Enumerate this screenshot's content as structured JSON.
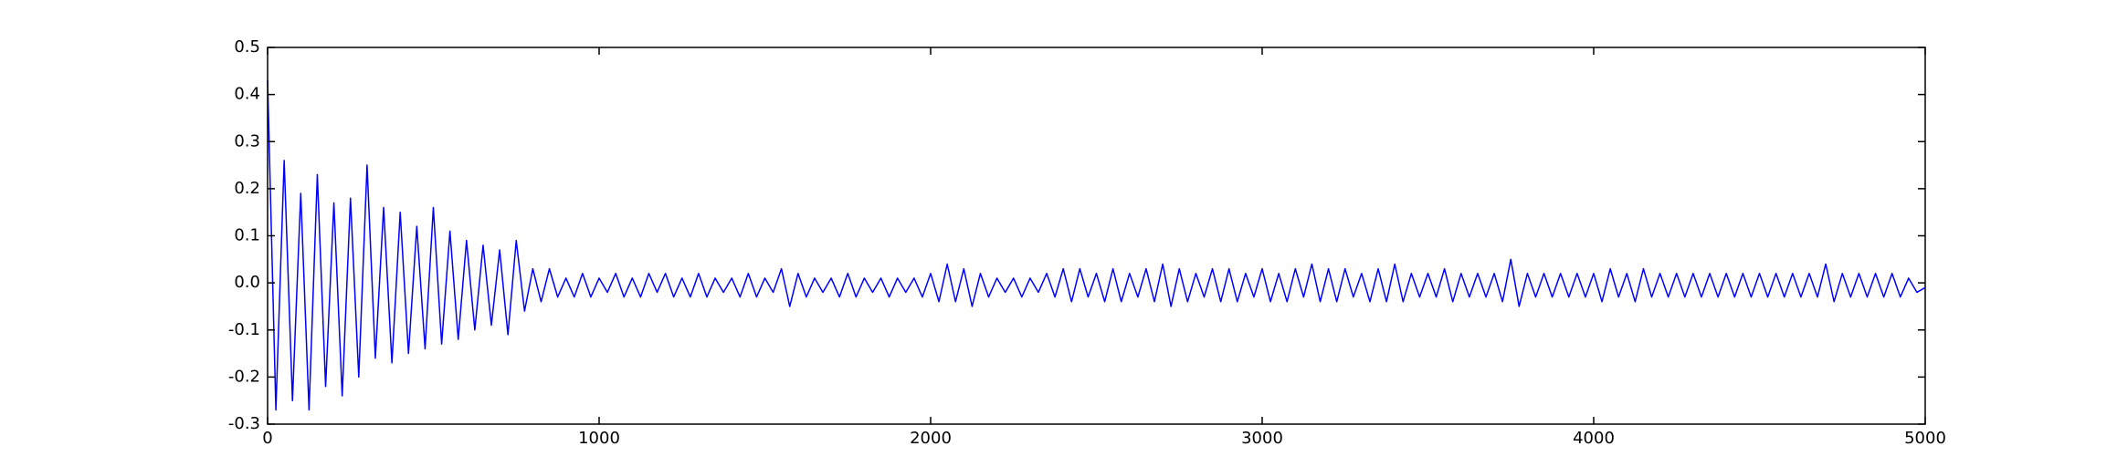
{
  "chart_data": {
    "type": "line",
    "x": [
      0,
      25,
      50,
      75,
      100,
      125,
      150,
      175,
      200,
      225,
      250,
      275,
      300,
      325,
      350,
      375,
      400,
      425,
      450,
      475,
      500,
      525,
      550,
      575,
      600,
      625,
      650,
      675,
      700,
      725,
      750,
      775,
      800,
      825,
      850,
      875,
      900,
      925,
      950,
      975,
      1000,
      1025,
      1050,
      1075,
      1100,
      1125,
      1150,
      1175,
      1200,
      1225,
      1250,
      1275,
      1300,
      1325,
      1350,
      1375,
      1400,
      1425,
      1450,
      1475,
      1500,
      1525,
      1550,
      1575,
      1600,
      1625,
      1650,
      1675,
      1700,
      1725,
      1750,
      1775,
      1800,
      1825,
      1850,
      1875,
      1900,
      1925,
      1950,
      1975,
      2000,
      2025,
      2050,
      2075,
      2100,
      2125,
      2150,
      2175,
      2200,
      2225,
      2250,
      2275,
      2300,
      2325,
      2350,
      2375,
      2400,
      2425,
      2450,
      2475,
      2500,
      2525,
      2550,
      2575,
      2600,
      2625,
      2650,
      2675,
      2700,
      2725,
      2750,
      2775,
      2800,
      2825,
      2850,
      2875,
      2900,
      2925,
      2950,
      2975,
      3000,
      3025,
      3050,
      3075,
      3100,
      3125,
      3150,
      3175,
      3200,
      3225,
      3250,
      3275,
      3300,
      3325,
      3350,
      3375,
      3400,
      3425,
      3450,
      3475,
      3500,
      3525,
      3550,
      3575,
      3600,
      3625,
      3650,
      3675,
      3700,
      3725,
      3750,
      3775,
      3800,
      3825,
      3850,
      3875,
      3900,
      3925,
      3950,
      3975,
      4000,
      4025,
      4050,
      4075,
      4100,
      4125,
      4150,
      4175,
      4200,
      4225,
      4250,
      4275,
      4300,
      4325,
      4350,
      4375,
      4400,
      4425,
      4450,
      4475,
      4500,
      4525,
      4550,
      4575,
      4600,
      4625,
      4650,
      4675,
      4700,
      4725,
      4750,
      4775,
      4800,
      4825,
      4850,
      4875,
      4900,
      4925,
      4950,
      4975,
      5000
    ],
    "series": [
      {
        "color": "#0000ff",
        "values": [
          0.43,
          -0.27,
          0.26,
          -0.25,
          0.19,
          -0.27,
          0.23,
          -0.22,
          0.17,
          -0.24,
          0.18,
          -0.2,
          0.25,
          -0.16,
          0.16,
          -0.17,
          0.15,
          -0.15,
          0.12,
          -0.14,
          0.16,
          -0.13,
          0.11,
          -0.12,
          0.09,
          -0.1,
          0.08,
          -0.09,
          0.07,
          -0.11,
          0.09,
          -0.06,
          0.03,
          -0.04,
          0.03,
          -0.03,
          0.01,
          -0.03,
          0.02,
          -0.03,
          0.01,
          -0.02,
          0.02,
          -0.03,
          0.01,
          -0.03,
          0.02,
          -0.02,
          0.02,
          -0.03,
          0.01,
          -0.03,
          0.02,
          -0.03,
          0.01,
          -0.02,
          0.01,
          -0.03,
          0.02,
          -0.03,
          0.01,
          -0.02,
          0.03,
          -0.05,
          0.02,
          -0.03,
          0.01,
          -0.02,
          0.01,
          -0.03,
          0.02,
          -0.03,
          0.01,
          -0.02,
          0.01,
          -0.03,
          0.01,
          -0.02,
          0.01,
          -0.03,
          0.02,
          -0.04,
          0.04,
          -0.04,
          0.03,
          -0.05,
          0.02,
          -0.03,
          0.01,
          -0.02,
          0.01,
          -0.03,
          0.01,
          -0.02,
          0.02,
          -0.03,
          0.03,
          -0.04,
          0.03,
          -0.03,
          0.02,
          -0.04,
          0.03,
          -0.04,
          0.02,
          -0.03,
          0.03,
          -0.04,
          0.04,
          -0.05,
          0.03,
          -0.04,
          0.02,
          -0.03,
          0.03,
          -0.04,
          0.03,
          -0.04,
          0.02,
          -0.03,
          0.03,
          -0.04,
          0.02,
          -0.04,
          0.03,
          -0.03,
          0.04,
          -0.04,
          0.03,
          -0.04,
          0.03,
          -0.03,
          0.02,
          -0.04,
          0.03,
          -0.04,
          0.04,
          -0.04,
          0.02,
          -0.03,
          0.02,
          -0.03,
          0.03,
          -0.04,
          0.02,
          -0.03,
          0.02,
          -0.03,
          0.02,
          -0.04,
          0.05,
          -0.05,
          0.02,
          -0.03,
          0.02,
          -0.03,
          0.02,
          -0.03,
          0.02,
          -0.03,
          0.02,
          -0.04,
          0.03,
          -0.03,
          0.02,
          -0.04,
          0.03,
          -0.03,
          0.02,
          -0.03,
          0.02,
          -0.03,
          0.02,
          -0.03,
          0.02,
          -0.03,
          0.02,
          -0.03,
          0.02,
          -0.03,
          0.02,
          -0.03,
          0.02,
          -0.03,
          0.02,
          -0.03,
          0.02,
          -0.03,
          0.04,
          -0.04,
          0.02,
          -0.03,
          0.02,
          -0.03,
          0.02,
          -0.03,
          0.02,
          -0.03,
          0.01,
          -0.02,
          -0.01
        ]
      }
    ],
    "xlim": [
      0,
      5000
    ],
    "xticks": [
      0,
      1000,
      2000,
      3000,
      4000,
      5000
    ],
    "ylim": [
      -0.3,
      0.5
    ],
    "yticks": [
      -0.3,
      -0.2,
      -0.1,
      {
        "value": 0,
        "label": "0.0"
      },
      0.1,
      0.2,
      0.3,
      0.4,
      0.5
    ]
  }
}
